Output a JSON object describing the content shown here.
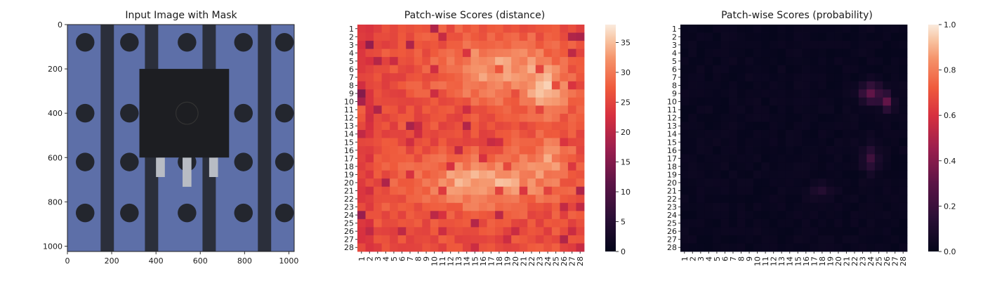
{
  "chart_data": [
    {
      "type": "image",
      "title": "Input Image with Mask",
      "xlim": [
        0,
        1024
      ],
      "ylim": [
        1024,
        0
      ],
      "xticks": [
        0,
        200,
        400,
        600,
        800,
        1000
      ],
      "yticks": [
        0,
        200,
        400,
        600,
        800,
        1000
      ]
    },
    {
      "type": "heatmap",
      "title": "Patch-wise Scores (distance)",
      "rows": 28,
      "cols": 28,
      "row_labels": [
        "1",
        "2",
        "3",
        "4",
        "5",
        "6",
        "7",
        "8",
        "9",
        "10",
        "11",
        "12",
        "13",
        "14",
        "15",
        "16",
        "17",
        "18",
        "19",
        "20",
        "21",
        "22",
        "23",
        "24",
        "25",
        "26",
        "27",
        "28"
      ],
      "col_labels": [
        "1",
        "2",
        "3",
        "4",
        "5",
        "6",
        "7",
        "8",
        "9",
        "10",
        "11",
        "12",
        "13",
        "14",
        "15",
        "16",
        "17",
        "18",
        "19",
        "20",
        "21",
        "22",
        "23",
        "24",
        "25",
        "26",
        "27",
        "28"
      ],
      "value_range": [
        0,
        38
      ],
      "colorbar_ticks": [
        0,
        5,
        10,
        15,
        20,
        25,
        30,
        35
      ],
      "colormap": "rocket"
    },
    {
      "type": "heatmap",
      "title": "Patch-wise Scores (probability)",
      "rows": 28,
      "cols": 28,
      "row_labels": [
        "1",
        "2",
        "3",
        "4",
        "5",
        "6",
        "7",
        "8",
        "9",
        "10",
        "11",
        "12",
        "13",
        "14",
        "15",
        "16",
        "17",
        "18",
        "19",
        "20",
        "21",
        "22",
        "23",
        "24",
        "25",
        "26",
        "27",
        "28"
      ],
      "col_labels": [
        "1",
        "2",
        "3",
        "4",
        "5",
        "6",
        "7",
        "8",
        "9",
        "10",
        "11",
        "12",
        "13",
        "14",
        "15",
        "16",
        "17",
        "18",
        "19",
        "20",
        "21",
        "22",
        "23",
        "24",
        "25",
        "26",
        "27",
        "28"
      ],
      "value_range": [
        0,
        1
      ],
      "colorbar_ticks": [
        0.0,
        0.2,
        0.4,
        0.6,
        0.8,
        1.0
      ],
      "colorbar_tick_labels": [
        "0.0",
        "0.2",
        "0.4",
        "0.6",
        "0.8",
        "1.0"
      ],
      "colormap": "rocket"
    }
  ]
}
